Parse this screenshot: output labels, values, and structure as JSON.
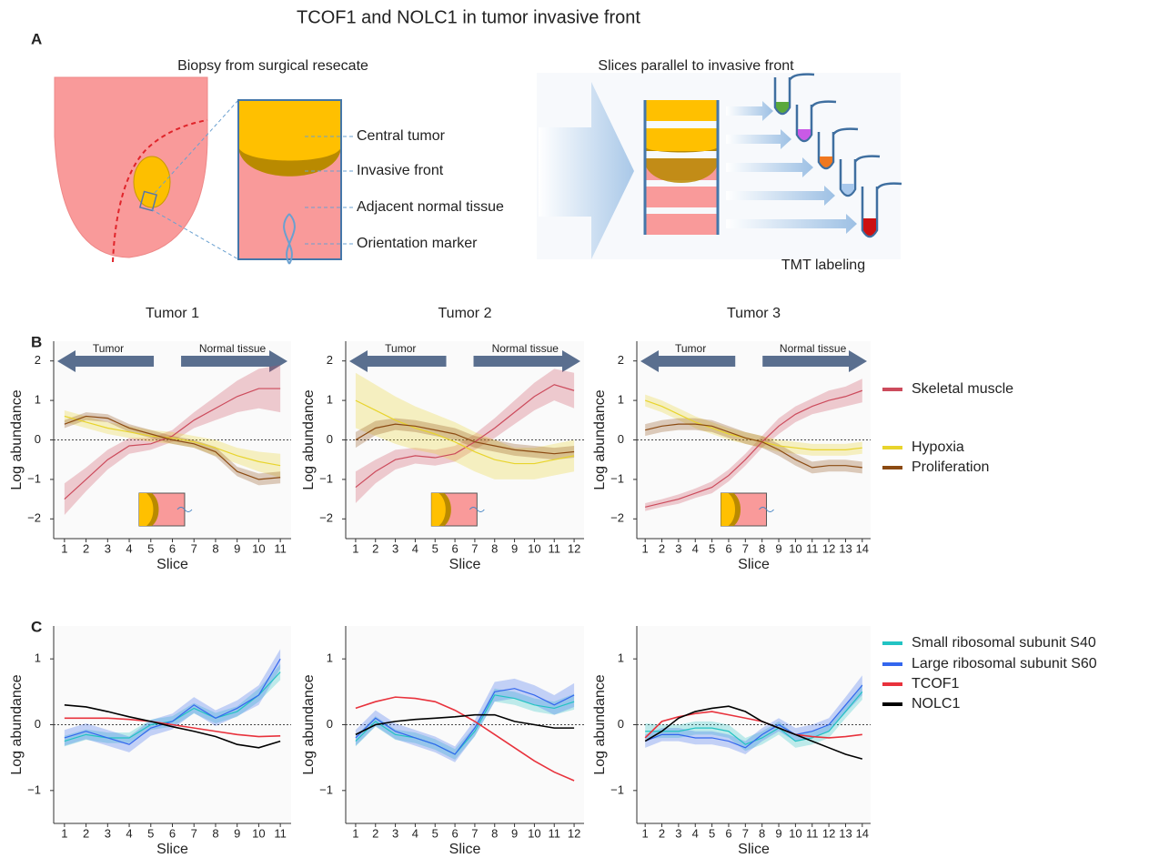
{
  "title": "TCOF1 and NOLC1 in tumor invasive front",
  "panel_labels": [
    "A",
    "B",
    "C"
  ],
  "panel_a": {
    "left_title": "Biopsy from surgical resecate",
    "right_title": "Slices parallel to invasive front",
    "labels": [
      "Central tumor",
      "Invasive front",
      "Adjacent normal tissue",
      "Orientation marker"
    ],
    "tmt": "TMT labeling"
  },
  "chart_data": [
    {
      "type": "line",
      "title": "Tumor 1",
      "x": [
        1,
        2,
        3,
        4,
        5,
        6,
        7,
        8,
        9,
        10,
        11
      ],
      "xlim": [
        0.5,
        11.5
      ],
      "xticks": [
        1,
        2,
        3,
        4,
        5,
        6,
        7,
        8,
        9,
        10,
        11
      ],
      "ylim": [
        -2.5,
        2.5
      ],
      "yticks": [
        {
          "value": -2,
          "label": "−2"
        },
        {
          "value": -1,
          "label": "−1"
        },
        0,
        1,
        2
      ],
      "x_label": "Slice",
      "y_label": "Log abundance",
      "annotations": [
        "Tumor",
        "Normal tissue"
      ],
      "hline": 0,
      "series": [
        {
          "color": "#cc4b5c",
          "values": [
            -1.5,
            -1.0,
            -0.5,
            -0.15,
            -0.1,
            0.1,
            0.5,
            0.8,
            1.1,
            1.3,
            1.3
          ],
          "error": [
            0.4,
            0.3,
            0.25,
            0.2,
            0.15,
            0.15,
            0.2,
            0.3,
            0.4,
            0.5,
            0.6
          ]
        },
        {
          "color": "#e8d42c",
          "values": [
            0.6,
            0.45,
            0.3,
            0.2,
            0.1,
            0.05,
            -0.05,
            -0.2,
            -0.4,
            -0.55,
            -0.65
          ],
          "error": [
            0.15,
            0.15,
            0.15,
            0.15,
            0.15,
            0.15,
            0.15,
            0.2,
            0.2,
            0.25,
            0.3
          ]
        },
        {
          "color": "#8b4a12",
          "values": [
            0.4,
            0.6,
            0.55,
            0.3,
            0.15,
            0.0,
            -0.1,
            -0.3,
            -0.8,
            -1.0,
            -0.95
          ],
          "error": [
            0.1,
            0.1,
            0.1,
            0.1,
            0.1,
            0.1,
            0.1,
            0.12,
            0.12,
            0.15,
            0.15
          ]
        }
      ]
    },
    {
      "type": "line",
      "title": "Tumor 2",
      "x": [
        1,
        2,
        3,
        4,
        5,
        6,
        7,
        8,
        9,
        10,
        11,
        12
      ],
      "xlim": [
        0.5,
        12.5
      ],
      "xticks": [
        1,
        2,
        3,
        4,
        5,
        6,
        7,
        8,
        9,
        10,
        11,
        12
      ],
      "ylim": [
        -2.5,
        2.5
      ],
      "yticks": [
        {
          "value": -2,
          "label": "−2"
        },
        {
          "value": -1,
          "label": "−1"
        },
        0,
        1,
        2
      ],
      "x_label": "Slice",
      "y_label": "Log abundance",
      "annotations": [
        "Tumor",
        "Normal tissue"
      ],
      "hline": 0,
      "series": [
        {
          "color": "#cc4b5c",
          "values": [
            -1.2,
            -0.8,
            -0.5,
            -0.4,
            -0.45,
            -0.35,
            -0.05,
            0.3,
            0.7,
            1.1,
            1.4,
            1.25
          ],
          "error": [
            0.4,
            0.3,
            0.25,
            0.2,
            0.2,
            0.2,
            0.2,
            0.25,
            0.3,
            0.35,
            0.4,
            0.45
          ]
        },
        {
          "color": "#e8d42c",
          "values": [
            1.0,
            0.75,
            0.5,
            0.3,
            0.15,
            -0.05,
            -0.3,
            -0.5,
            -0.6,
            -0.6,
            -0.5,
            -0.4
          ],
          "error": [
            0.7,
            0.65,
            0.6,
            0.55,
            0.5,
            0.5,
            0.5,
            0.5,
            0.4,
            0.4,
            0.4,
            0.4
          ]
        },
        {
          "color": "#8b4a12",
          "values": [
            0.0,
            0.3,
            0.4,
            0.35,
            0.25,
            0.15,
            -0.05,
            -0.15,
            -0.25,
            -0.3,
            -0.35,
            -0.3
          ],
          "error": [
            0.2,
            0.18,
            0.15,
            0.15,
            0.15,
            0.15,
            0.15,
            0.15,
            0.15,
            0.15,
            0.15,
            0.15
          ]
        }
      ]
    },
    {
      "type": "line",
      "title": "Tumor 3",
      "x": [
        1,
        2,
        3,
        4,
        5,
        6,
        7,
        8,
        9,
        10,
        11,
        12,
        13,
        14
      ],
      "xlim": [
        0.5,
        14.5
      ],
      "xticks": [
        1,
        2,
        3,
        4,
        5,
        6,
        7,
        8,
        9,
        10,
        11,
        12,
        13,
        14
      ],
      "ylim": [
        -2.5,
        2.5
      ],
      "yticks": [
        {
          "value": -2,
          "label": "−2"
        },
        {
          "value": -1,
          "label": "−1"
        },
        0,
        1,
        2
      ],
      "x_label": "Slice",
      "y_label": "Log abundance",
      "annotations": [
        "Tumor",
        "Normal tissue"
      ],
      "hline": 0,
      "series": [
        {
          "name": "Skeletal muscle",
          "color": "#cc4b5c",
          "values": [
            -1.7,
            -1.6,
            -1.5,
            -1.35,
            -1.2,
            -0.9,
            -0.5,
            -0.05,
            0.35,
            0.65,
            0.85,
            1.0,
            1.1,
            1.25
          ],
          "error": [
            0.1,
            0.1,
            0.12,
            0.12,
            0.15,
            0.15,
            0.15,
            0.15,
            0.2,
            0.2,
            0.2,
            0.25,
            0.25,
            0.3
          ]
        },
        {
          "name": "Hypoxia",
          "color": "#e8d42c",
          "values": [
            1.0,
            0.85,
            0.65,
            0.45,
            0.3,
            0.15,
            0.05,
            -0.05,
            -0.15,
            -0.2,
            -0.25,
            -0.25,
            -0.25,
            -0.2
          ],
          "error": [
            0.15,
            0.15,
            0.15,
            0.15,
            0.15,
            0.15,
            0.15,
            0.15,
            0.15,
            0.15,
            0.15,
            0.15,
            0.15,
            0.15
          ]
        },
        {
          "name": "Proliferation",
          "color": "#8b4a12",
          "values": [
            0.25,
            0.35,
            0.4,
            0.4,
            0.35,
            0.2,
            0.05,
            -0.05,
            -0.25,
            -0.5,
            -0.7,
            -0.65,
            -0.65,
            -0.7
          ],
          "error": [
            0.15,
            0.15,
            0.15,
            0.15,
            0.15,
            0.15,
            0.15,
            0.15,
            0.15,
            0.15,
            0.15,
            0.15,
            0.15,
            0.15
          ]
        }
      ]
    },
    {
      "type": "line",
      "x": [
        1,
        2,
        3,
        4,
        5,
        6,
        7,
        8,
        9,
        10,
        11
      ],
      "xlim": [
        0.5,
        11.5
      ],
      "xticks": [
        1,
        2,
        3,
        4,
        5,
        6,
        7,
        8,
        9,
        10,
        11
      ],
      "ylim": [
        -1.5,
        1.5
      ],
      "yticks": [
        {
          "value": -1,
          "label": "−1"
        },
        0,
        1
      ],
      "x_label": "Slice",
      "y_label": "Log abundance",
      "hline": 0,
      "series": [
        {
          "color": "#22c3c3",
          "values": [
            -0.25,
            -0.15,
            -0.2,
            -0.2,
            0.0,
            0.05,
            0.25,
            0.1,
            0.2,
            0.45,
            0.8
          ],
          "error": [
            0.08,
            0.08,
            0.08,
            0.08,
            0.08,
            0.08,
            0.08,
            0.08,
            0.08,
            0.1,
            0.12
          ]
        },
        {
          "color": "#3366ee",
          "values": [
            -0.2,
            -0.1,
            -0.2,
            -0.3,
            -0.05,
            0.05,
            0.3,
            0.1,
            0.25,
            0.45,
            1.0
          ],
          "error": [
            0.12,
            0.12,
            0.12,
            0.12,
            0.12,
            0.12,
            0.12,
            0.12,
            0.12,
            0.15,
            0.15
          ]
        },
        {
          "color": "#e8323c",
          "values": [
            0.1,
            0.1,
            0.1,
            0.08,
            0.05,
            0.0,
            -0.05,
            -0.1,
            -0.15,
            -0.18,
            -0.17
          ]
        },
        {
          "color": "#000000",
          "values": [
            0.3,
            0.27,
            0.2,
            0.12,
            0.05,
            -0.03,
            -0.1,
            -0.18,
            -0.3,
            -0.35,
            -0.25
          ]
        }
      ]
    },
    {
      "type": "line",
      "x": [
        1,
        2,
        3,
        4,
        5,
        6,
        7,
        8,
        9,
        10,
        11,
        12
      ],
      "xlim": [
        0.5,
        12.5
      ],
      "xticks": [
        1,
        2,
        3,
        4,
        5,
        6,
        7,
        8,
        9,
        10,
        11,
        12
      ],
      "ylim": [
        -1.5,
        1.5
      ],
      "yticks": [
        {
          "value": -1,
          "label": "−1"
        },
        0,
        1
      ],
      "x_label": "Slice",
      "y_label": "Log abundance",
      "hline": 0,
      "series": [
        {
          "color": "#22c3c3",
          "values": [
            -0.25,
            0.05,
            -0.15,
            -0.2,
            -0.3,
            -0.45,
            -0.1,
            0.45,
            0.4,
            0.3,
            0.25,
            0.35
          ],
          "error": [
            0.08,
            0.08,
            0.08,
            0.08,
            0.08,
            0.08,
            0.08,
            0.1,
            0.1,
            0.1,
            0.1,
            0.12
          ]
        },
        {
          "color": "#3366ee",
          "values": [
            -0.2,
            0.1,
            -0.1,
            -0.2,
            -0.3,
            -0.45,
            -0.05,
            0.5,
            0.55,
            0.45,
            0.3,
            0.45
          ],
          "error": [
            0.12,
            0.12,
            0.12,
            0.12,
            0.12,
            0.12,
            0.12,
            0.15,
            0.15,
            0.15,
            0.15,
            0.18
          ]
        },
        {
          "color": "#e8323c",
          "values": [
            0.25,
            0.35,
            0.42,
            0.4,
            0.35,
            0.22,
            0.05,
            -0.15,
            -0.35,
            -0.55,
            -0.72,
            -0.85
          ]
        },
        {
          "color": "#000000",
          "values": [
            -0.15,
            0.0,
            0.05,
            0.08,
            0.1,
            0.12,
            0.15,
            0.15,
            0.05,
            0.0,
            -0.05,
            -0.05
          ]
        }
      ]
    },
    {
      "type": "line",
      "x": [
        1,
        2,
        3,
        4,
        5,
        6,
        7,
        8,
        9,
        10,
        11,
        12,
        13,
        14
      ],
      "xlim": [
        0.5,
        14.5
      ],
      "xticks": [
        1,
        2,
        3,
        4,
        5,
        6,
        7,
        8,
        9,
        10,
        11,
        12,
        13,
        14
      ],
      "ylim": [
        -1.5,
        1.5
      ],
      "yticks": [
        {
          "value": -1,
          "label": "−1"
        },
        0,
        1
      ],
      "x_label": "Slice",
      "y_label": "Log abundance",
      "hline": 0,
      "series": [
        {
          "name": "Small ribosomal subunit S40",
          "color": "#22c3c3",
          "values": [
            -0.1,
            -0.1,
            -0.1,
            -0.05,
            -0.05,
            -0.1,
            -0.3,
            -0.2,
            -0.05,
            -0.25,
            -0.2,
            -0.1,
            0.2,
            0.5
          ],
          "error": [
            0.12,
            0.1,
            0.1,
            0.1,
            0.1,
            0.1,
            0.1,
            0.1,
            0.1,
            0.1,
            0.1,
            0.1,
            0.1,
            0.12
          ]
        },
        {
          "name": "Large ribosomal subunit S60",
          "color": "#3366ee",
          "values": [
            -0.25,
            -0.15,
            -0.15,
            -0.2,
            -0.2,
            -0.25,
            -0.35,
            -0.15,
            0.0,
            -0.15,
            -0.1,
            0.0,
            0.3,
            0.6
          ],
          "error": [
            0.1,
            0.1,
            0.1,
            0.1,
            0.1,
            0.1,
            0.1,
            0.1,
            0.1,
            0.1,
            0.1,
            0.1,
            0.12,
            0.15
          ]
        },
        {
          "name": "TCOF1",
          "color": "#e8323c",
          "values": [
            -0.2,
            0.05,
            0.12,
            0.17,
            0.2,
            0.15,
            0.1,
            0.05,
            -0.05,
            -0.15,
            -0.18,
            -0.2,
            -0.18,
            -0.15
          ]
        },
        {
          "name": "NOLC1",
          "color": "#000000",
          "values": [
            -0.25,
            -0.1,
            0.1,
            0.2,
            0.25,
            0.28,
            0.2,
            0.05,
            -0.05,
            -0.15,
            -0.25,
            -0.35,
            -0.45,
            -0.52
          ]
        }
      ]
    }
  ]
}
